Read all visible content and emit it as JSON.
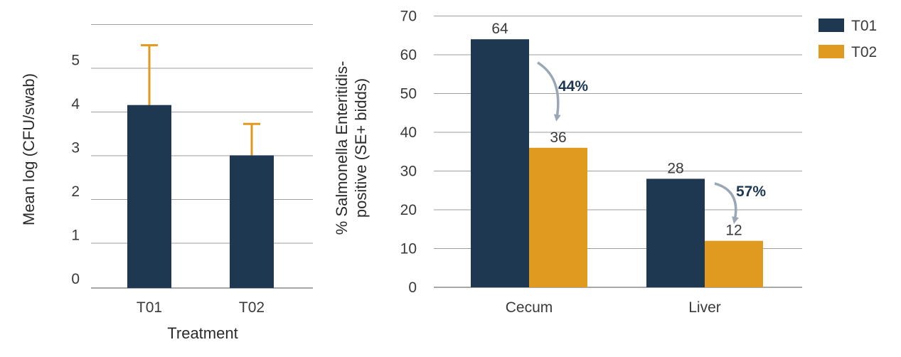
{
  "chart_data": [
    {
      "type": "bar",
      "categories": [
        "T01",
        "T02"
      ],
      "values": [
        4.2,
        3.05
      ],
      "error_upper": [
        5.6,
        3.8
      ],
      "xlabel": "Treatment",
      "ylabel": "Mean log (CFU/swab)",
      "ylim": [
        0,
        6
      ],
      "yticks": [
        "0",
        "1",
        "2",
        "3",
        "4",
        "5"
      ],
      "grid": true,
      "bar_color": "#1e3851",
      "error_color": "#e09a20"
    },
    {
      "type": "bar",
      "categories": [
        "Cecum",
        "Liver"
      ],
      "series": [
        {
          "name": "T01",
          "values": [
            64,
            28
          ],
          "color": "#1e3851"
        },
        {
          "name": "T02",
          "values": [
            36,
            12
          ],
          "color": "#e09a20"
        }
      ],
      "data_labels": [
        [
          "64",
          "28"
        ],
        [
          "36",
          "12"
        ]
      ],
      "ylabel_line1": "% Salmonella Enteritidis-",
      "ylabel_line2": "positive (SE+ bidds)",
      "ylim": [
        0,
        70
      ],
      "yticks": [
        "0",
        "10",
        "20",
        "30",
        "40",
        "50",
        "60",
        "70"
      ],
      "grid": true,
      "legend_position": "top-right",
      "annotations": [
        "44%",
        "57%"
      ],
      "annotation_color": "#1e3851",
      "arrow_color": "#9aa7b5"
    }
  ]
}
